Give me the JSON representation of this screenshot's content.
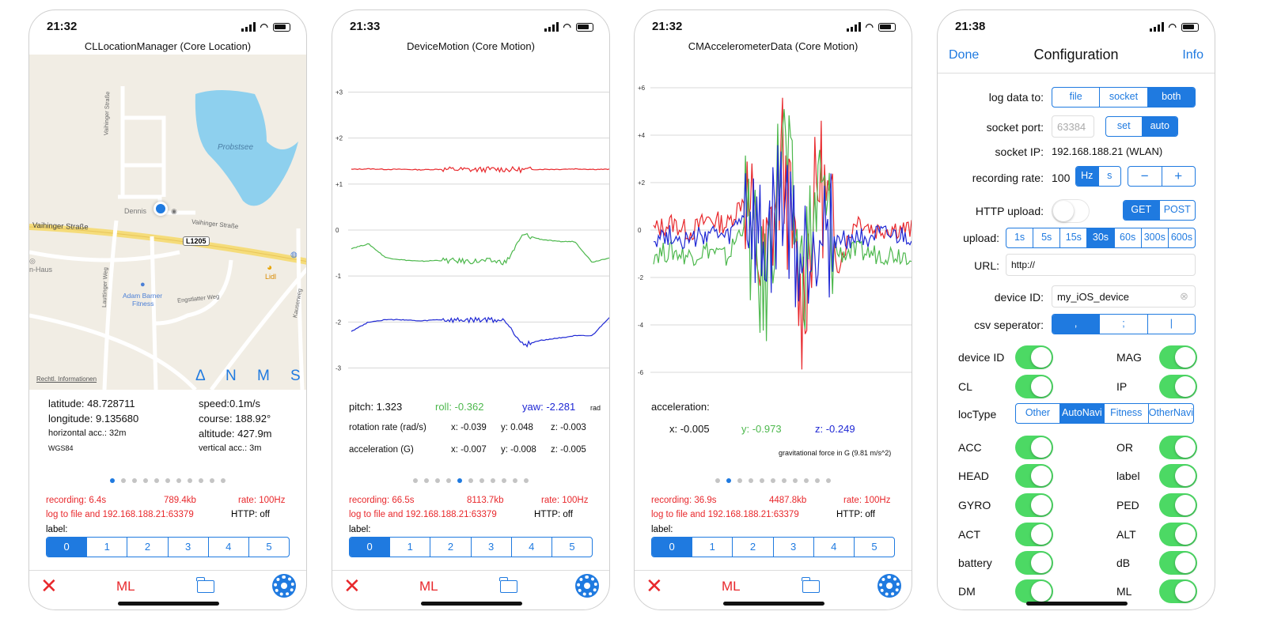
{
  "colors": {
    "accent": "#1f7ae0",
    "record": "#e8282c",
    "pitch": "#e8282c",
    "roll": "#4db84d",
    "yaw": "#1f28d4",
    "switch_on": "#4cd964"
  },
  "screens": [
    {
      "time": "21:32",
      "title": "CLLocationManager (Core Location)",
      "map": {
        "lake": "Probstsee",
        "streets": [
          "Vaihinger Straße",
          "Vaihinger Straße",
          "Engstlatter Weg",
          "Lauttinger Weg",
          "Vaihinger Straße",
          "Kauserweg"
        ],
        "road_badge": "L1205",
        "pois": [
          "Dennis",
          "Lidl",
          "Adam Barner",
          "Fitness",
          "n-Haus"
        ],
        "legal": "Rechtl. Informationen",
        "overlay": [
          "Δ",
          "N",
          "M",
          "S"
        ]
      },
      "info": {
        "latitude": "latitude: 48.728711",
        "longitude": "longitude: 9.135680",
        "hacc": "horizontal acc.: 32m",
        "datum": "WGS84",
        "speed": "speed:0.1m/s",
        "course": "course: 188.92°",
        "altitude": "altitude: 427.9m",
        "vacc": "vertical acc.: 3m"
      },
      "recording": "recording:   6.4s",
      "size": "789.4kb",
      "rate": "rate: 100Hz",
      "log": "log to file and 192.168.188.21:63379",
      "http": "HTTP:   off",
      "label": "label:",
      "labels": [
        "0",
        "1",
        "2",
        "3",
        "4",
        "5"
      ],
      "ml": "ML"
    },
    {
      "time": "21:33",
      "title": "DeviceMotion (Core Motion)",
      "pitch": "pitch: 1.323",
      "roll": "roll: -0.362",
      "yaw": "yaw: -2.281",
      "unit": "rad",
      "rot_label": "rotation rate (rad/s)",
      "rot": {
        "x": "x: -0.039",
        "y": "y: 0.048",
        "z": "z: -0.003"
      },
      "acc_label": "acceleration (G)",
      "acc": {
        "x": "x: -0.007",
        "y": "y: -0.008",
        "z": "z: -0.005"
      },
      "recording": "recording:   66.5s",
      "size": "8113.7kb",
      "rate": "rate: 100Hz",
      "log": "log to file and 192.168.188.21:63379",
      "http": "HTTP:   off",
      "label": "label:",
      "labels": [
        "0",
        "1",
        "2",
        "3",
        "4",
        "5"
      ],
      "ml": "ML"
    },
    {
      "time": "21:32",
      "title": "CMAccelerometerData (Core Motion)",
      "acc_title": "acceleration:",
      "x": "x: -0.005",
      "y": "y: -0.973",
      "z": "z: -0.249",
      "gnote": "gravitational force in G (9.81 m/s^2)",
      "recording": "recording:   36.9s",
      "size": "4487.8kb",
      "rate": "rate: 100Hz",
      "log": "log to file and 192.168.188.21:63379",
      "http": "HTTP:   off",
      "label": "label:",
      "labels": [
        "0",
        "1",
        "2",
        "3",
        "4",
        "5"
      ],
      "ml": "ML"
    }
  ],
  "config": {
    "time": "21:38",
    "done": "Done",
    "title": "Configuration",
    "info": "Info",
    "log_label": "log data to:",
    "log_opts": [
      "file",
      "socket",
      "both"
    ],
    "port_label": "socket port:",
    "port_placeholder": "63384",
    "port_opts": [
      "set",
      "auto"
    ],
    "ip_label": "socket IP:",
    "ip_value": "192.168.188.21 (WLAN)",
    "rate_label": "recording rate:",
    "rate_value": "100",
    "rate_units": [
      "Hz",
      "s"
    ],
    "stepper": [
      "−",
      "+"
    ],
    "http_label": "HTTP upload:",
    "http_opts": [
      "GET",
      "POST"
    ],
    "upload_label": "upload:",
    "upload_opts": [
      "1s",
      "5s",
      "15s",
      "30s",
      "60s",
      "300s",
      "600s"
    ],
    "url_label": "URL:",
    "url_value": "http://",
    "device_label": "device ID:",
    "device_value": "my_iOS_device",
    "csv_label": "csv seperator:",
    "csv_opts": [
      ",",
      ";",
      "|"
    ],
    "loctype_label": "locType",
    "loctype_opts": [
      "Other",
      "AutoNavi",
      "Fitness",
      "OtherNavi"
    ],
    "toggles_left": [
      "device ID",
      "CL",
      "ACC",
      "HEAD",
      "GYRO",
      "ACT",
      "battery",
      "DM"
    ],
    "toggles_right": [
      "MAG",
      "IP",
      "OR",
      "label",
      "PED",
      "ALT",
      "dB",
      "ML"
    ]
  },
  "chart_data": [
    {
      "type": "line",
      "title": "DeviceMotion (Core Motion)",
      "ylim": [
        -3.3,
        3.3
      ],
      "yticks": [
        "+3",
        "+2",
        "+1",
        "0",
        "-1",
        "-2",
        "-3"
      ],
      "series": [
        {
          "name": "pitch",
          "values": [
            1.32,
            1.33,
            1.32,
            1.32,
            1.31,
            1.32,
            1.32,
            1.31,
            1.32,
            1.32,
            1.31,
            1.32,
            1.32,
            1.33,
            1.32,
            1.32
          ]
        },
        {
          "name": "roll",
          "values": [
            -0.4,
            -0.3,
            -0.6,
            -0.65,
            -0.68,
            -0.66,
            -0.67,
            -0.68,
            -0.67,
            -0.7,
            -0.1,
            -0.2,
            -0.25,
            -0.25,
            -0.7,
            -0.6
          ]
        },
        {
          "name": "yaw",
          "values": [
            -2.2,
            -2.0,
            -1.95,
            -1.95,
            -1.98,
            -1.95,
            -1.97,
            -1.96,
            -1.95,
            -1.98,
            -2.5,
            -2.4,
            -2.35,
            -2.3,
            -2.3,
            -1.9
          ]
        }
      ]
    },
    {
      "type": "line",
      "title": "CMAccelerometerData (Core Motion)",
      "ylim": [
        -6.4,
        6.4
      ],
      "yticks": [
        "+6",
        "+4",
        "+2",
        "0",
        "-2",
        "-4",
        "-6"
      ],
      "series": [
        {
          "name": "x",
          "values": [
            0.0,
            0.3,
            -0.1,
            0.5,
            0.2,
            1.5,
            -2.0,
            3.0,
            -3.5,
            2.5,
            -1.5,
            0.5,
            0.0,
            0.1,
            0.0
          ]
        },
        {
          "name": "y",
          "values": [
            -1.0,
            -0.9,
            -1.1,
            -0.8,
            -1.2,
            0.5,
            -3.0,
            4.0,
            -2.0,
            1.5,
            -1.0,
            -0.9,
            -1.0,
            -1.0,
            -1.0
          ]
        },
        {
          "name": "z",
          "values": [
            -0.3,
            -0.2,
            -0.5,
            -0.1,
            -0.4,
            0.8,
            -1.5,
            1.5,
            -1.8,
            0.5,
            -0.5,
            -0.3,
            -0.25,
            -0.3,
            -0.3
          ]
        }
      ]
    }
  ]
}
